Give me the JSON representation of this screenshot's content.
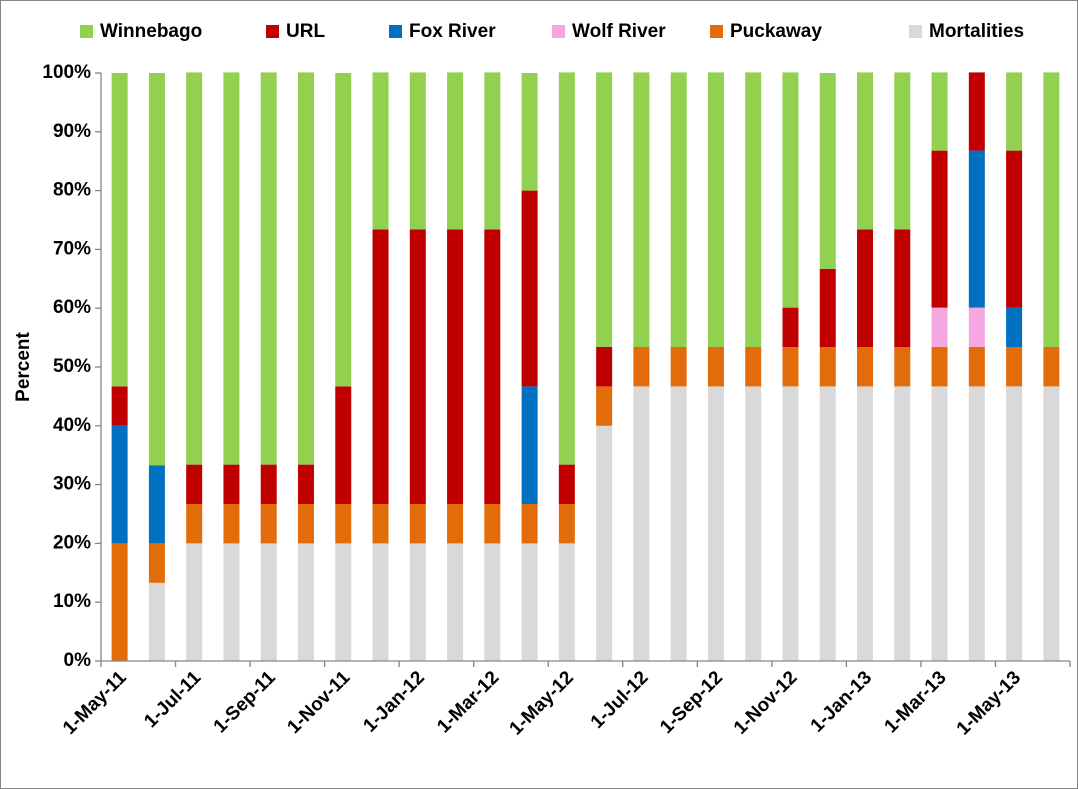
{
  "chart_data": {
    "type": "stacked_bar",
    "y_label": "Percent",
    "legend": "top",
    "categories": [
      "1-May-11",
      null,
      "1-Jul-11",
      null,
      "1-Sep-11",
      null,
      "1-Nov-11",
      null,
      "1-Jan-12",
      null,
      "1-Mar-12",
      null,
      "1-May-12",
      null,
      "1-Jul-12",
      null,
      "1-Sep-12",
      null,
      "1-Nov-12",
      null,
      "1-Jan-13",
      null,
      "1-Mar-13",
      null,
      "1-May-13",
      null
    ],
    "ylim": [
      0,
      100
    ],
    "yticks": [
      {
        "value": 0,
        "label": "0%"
      },
      {
        "value": 10,
        "label": "10%"
      },
      {
        "value": 20,
        "label": "20%"
      },
      {
        "value": 30,
        "label": "30%"
      },
      {
        "value": 40,
        "label": "40%"
      },
      {
        "value": 50,
        "label": "50%"
      },
      {
        "value": 60,
        "label": "60%"
      },
      {
        "value": 70,
        "label": "70%"
      },
      {
        "value": 80,
        "label": "80%"
      },
      {
        "value": 90,
        "label": "90%"
      },
      {
        "value": 100,
        "label": "100%"
      }
    ],
    "series": [
      {
        "name": "Mortalities",
        "color": "#d9d9d9",
        "values": [
          0,
          13.3,
          20,
          20,
          20,
          20,
          20,
          20,
          20,
          20,
          20,
          20,
          20,
          40,
          46.7,
          46.7,
          46.7,
          46.7,
          46.7,
          46.7,
          46.7,
          46.7,
          46.7,
          46.7,
          46.7,
          46.7
        ]
      },
      {
        "name": "Puckaway",
        "color": "#e36c0a",
        "values": [
          20,
          6.7,
          6.7,
          6.7,
          6.7,
          6.7,
          6.7,
          6.7,
          6.7,
          6.7,
          6.7,
          6.7,
          6.7,
          6.7,
          6.7,
          6.7,
          6.7,
          6.7,
          6.7,
          6.7,
          6.7,
          6.7,
          6.7,
          6.7,
          6.7,
          6.7
        ]
      },
      {
        "name": "Wolf River",
        "color": "#f4a7e0",
        "values": [
          0,
          0,
          0,
          0,
          0,
          0,
          0,
          0,
          0,
          0,
          0,
          0,
          0,
          0,
          0,
          0,
          0,
          0,
          0,
          0,
          0,
          0,
          6.7,
          6.7,
          0,
          0
        ]
      },
      {
        "name": "Fox River",
        "color": "#0070c0",
        "values": [
          20,
          13.3,
          0,
          0,
          0,
          0,
          0,
          0,
          0,
          0,
          0,
          20,
          0,
          0,
          0,
          0,
          0,
          0,
          0,
          0,
          0,
          0,
          0,
          26.7,
          6.7,
          0
        ]
      },
      {
        "name": "URL",
        "color": "#c00000",
        "values": [
          6.7,
          0,
          6.7,
          6.7,
          6.7,
          6.7,
          20,
          46.7,
          46.7,
          46.7,
          46.7,
          33.3,
          6.7,
          6.7,
          0,
          0,
          0,
          0,
          6.7,
          13.3,
          20,
          20,
          26.7,
          13.3,
          26.7,
          0
        ]
      },
      {
        "name": "Winnebago",
        "color": "#92d050",
        "values": [
          53.3,
          66.7,
          66.7,
          66.7,
          66.7,
          66.7,
          53.3,
          26.7,
          26.7,
          26.7,
          26.7,
          20,
          66.7,
          46.7,
          46.7,
          46.7,
          46.7,
          46.7,
          40,
          33.3,
          26.7,
          26.7,
          13.3,
          0,
          13.3,
          46.7
        ]
      }
    ]
  }
}
